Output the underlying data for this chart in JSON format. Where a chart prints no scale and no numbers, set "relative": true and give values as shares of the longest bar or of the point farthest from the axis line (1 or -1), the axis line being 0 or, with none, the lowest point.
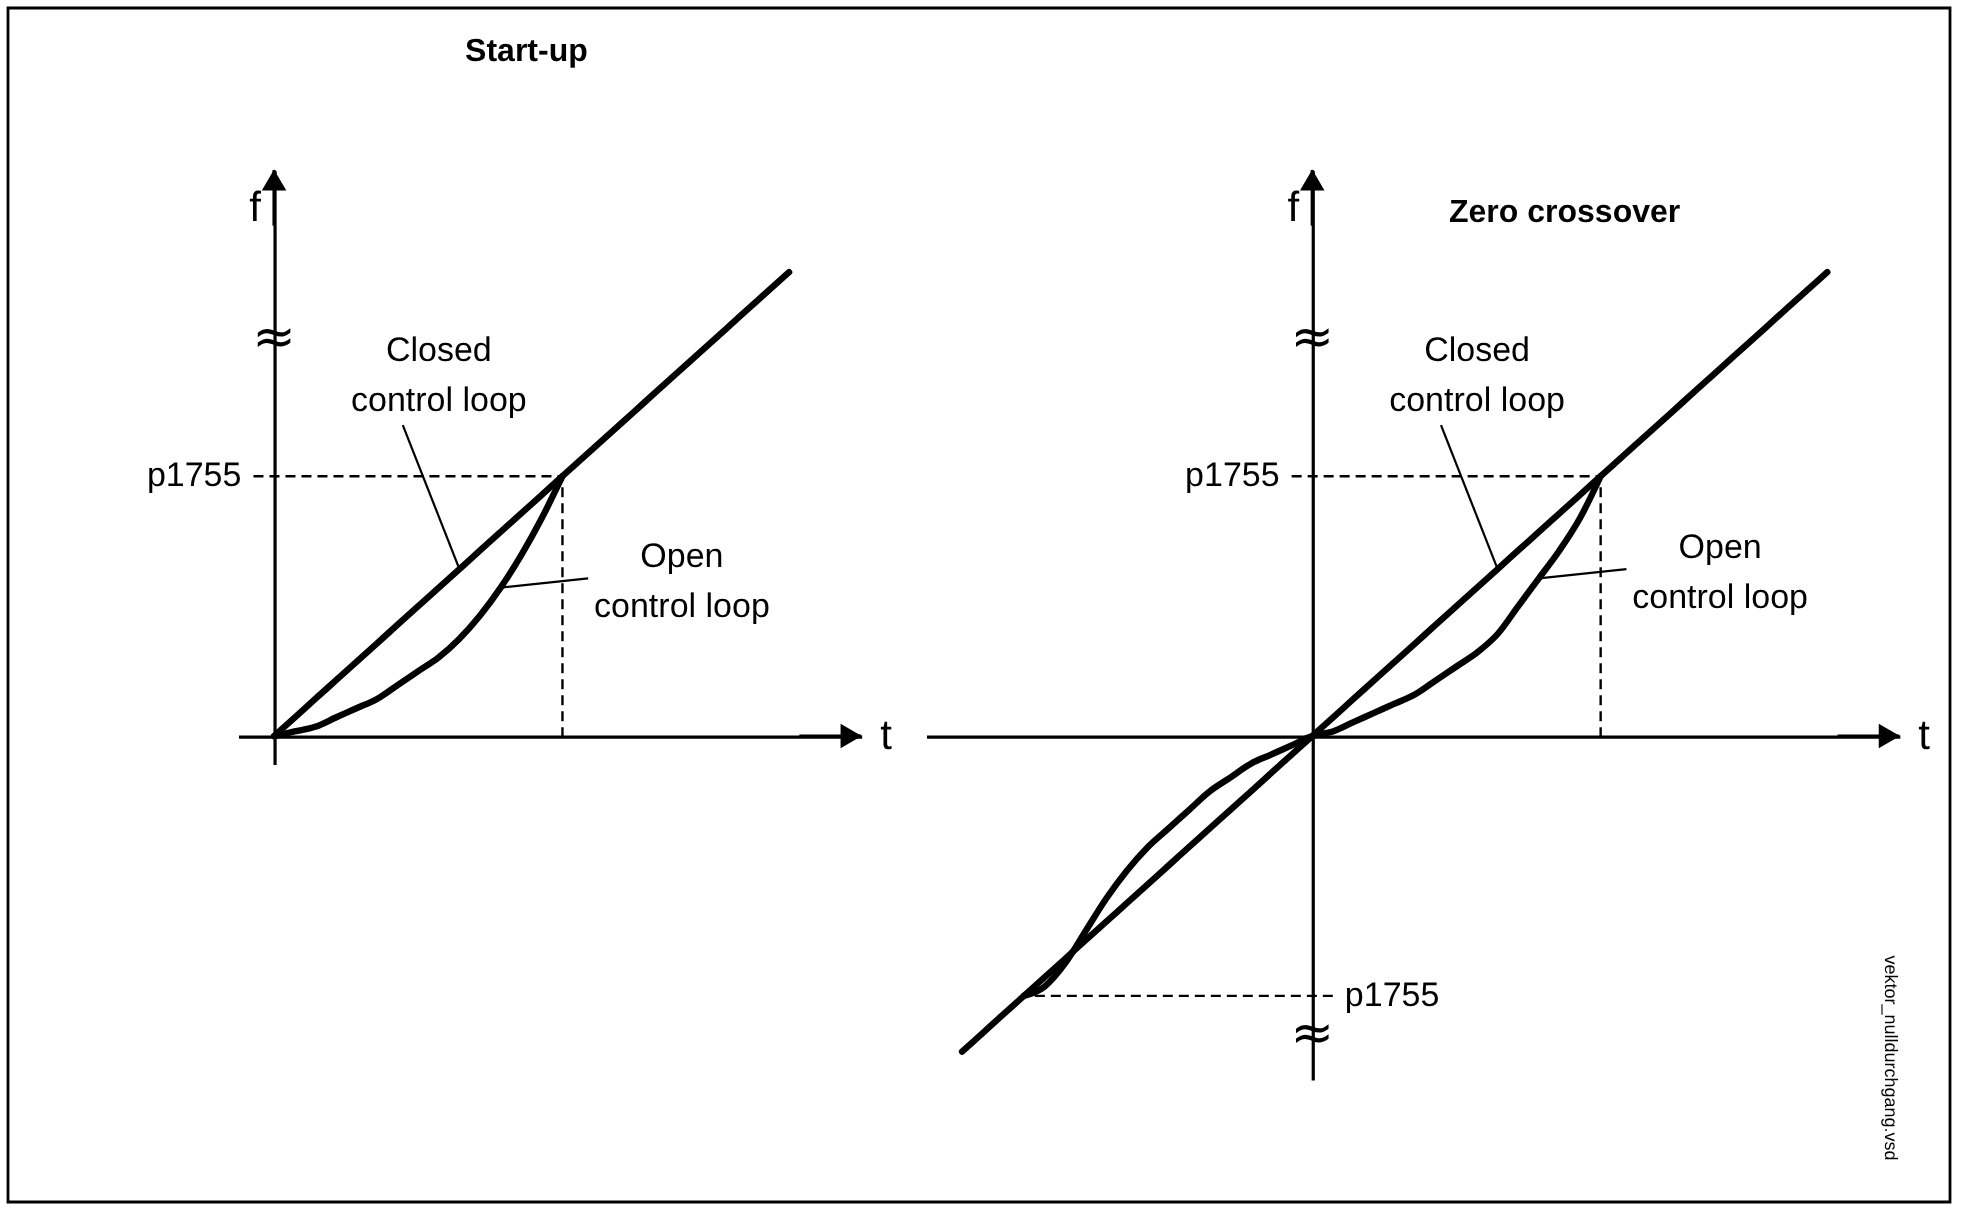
{
  "chart_data": [
    {
      "type": "line",
      "title": "Start-up",
      "xlabel": "t",
      "ylabel": "f",
      "relative": true,
      "line_style": "solid",
      "categories": [
        null,
        null,
        null,
        null,
        null,
        null,
        null,
        null,
        null,
        null,
        null,
        null,
        null,
        null,
        null,
        null,
        null,
        null,
        null,
        null,
        null,
        null,
        null,
        null,
        null,
        null
      ],
      "series": [
        {
          "name": "Closed control loop",
          "color": "#000000",
          "values": [
            0,
            0.04,
            0.08,
            0.12,
            0.16,
            0.2,
            0.24,
            0.28,
            0.32,
            0.36,
            0.4,
            0.44,
            0.48,
            0.52,
            0.56,
            0.6,
            0.64,
            0.68,
            0.72,
            0.76,
            0.8,
            0.84,
            0.88,
            0.92,
            0.96,
            1
          ]
        },
        {
          "name": "Open control loop",
          "color": "#000000",
          "values": [
            0,
            0.01,
            0.02,
            0.04,
            0.06,
            0.08,
            0.11,
            0.14,
            0.17,
            0.21,
            0.26,
            0.32,
            0.39,
            0.47,
            0.56,
            null,
            null,
            null,
            null,
            null,
            null,
            null,
            null,
            null,
            null,
            null
          ]
        }
      ],
      "ref_lines": [
        {
          "axis": "y",
          "value": 0.56,
          "label": "p1755",
          "line_style": "dashed"
        }
      ],
      "annotations": [
        "≈"
      ]
    },
    {
      "type": "line",
      "title": "Zero crossover",
      "xlabel": "t",
      "ylabel": "f",
      "relative": true,
      "line_style": "solid",
      "categories": [
        null,
        null,
        null,
        null,
        null,
        null,
        null,
        null,
        null,
        null,
        null,
        null,
        null,
        null,
        null,
        null,
        null,
        null,
        null,
        null,
        null,
        null,
        null,
        null,
        null,
        null,
        null,
        null,
        null,
        null,
        null,
        null,
        null,
        null,
        null,
        null,
        null,
        null,
        null,
        null,
        null,
        null,
        null
      ],
      "series": [
        {
          "name": "Closed control loop",
          "color": "#000000",
          "values": [
            -0.68,
            -0.64,
            -0.6,
            -0.56,
            -0.52,
            -0.48,
            -0.44,
            -0.4,
            -0.36,
            -0.32,
            -0.28,
            -0.24,
            -0.2,
            -0.16,
            -0.12,
            -0.08,
            -0.04,
            0,
            0.04,
            0.08,
            0.12,
            0.16,
            0.2,
            0.24,
            0.28,
            0.32,
            0.36,
            0.4,
            0.44,
            0.48,
            0.52,
            0.56,
            0.6,
            0.64,
            0.68,
            0.72,
            0.76,
            0.8,
            0.84,
            0.88,
            0.92,
            0.96,
            1
          ]
        },
        {
          "name": "Open control loop",
          "color": "#000000",
          "values": [
            null,
            null,
            null,
            -0.56,
            -0.54,
            -0.49,
            -0.42,
            -0.35,
            -0.29,
            -0.24,
            -0.2,
            -0.16,
            -0.12,
            -0.09,
            -0.06,
            -0.04,
            -0.02,
            0,
            0.01,
            0.03,
            0.05,
            0.07,
            0.09,
            0.12,
            0.15,
            0.18,
            0.22,
            0.28,
            0.34,
            0.4,
            0.47,
            0.56,
            null,
            null,
            null,
            null,
            null,
            null,
            null,
            null,
            null,
            null,
            null
          ]
        }
      ],
      "ref_lines": [
        {
          "axis": "y",
          "value": 0.56,
          "label": "p1755",
          "line_style": "dashed"
        },
        {
          "axis": "y",
          "value": -0.56,
          "label": "p1755",
          "line_style": "dashed"
        }
      ],
      "annotations": [
        "≈",
        "≈",
        "vektor_nulldurchgang.vsd"
      ]
    }
  ]
}
